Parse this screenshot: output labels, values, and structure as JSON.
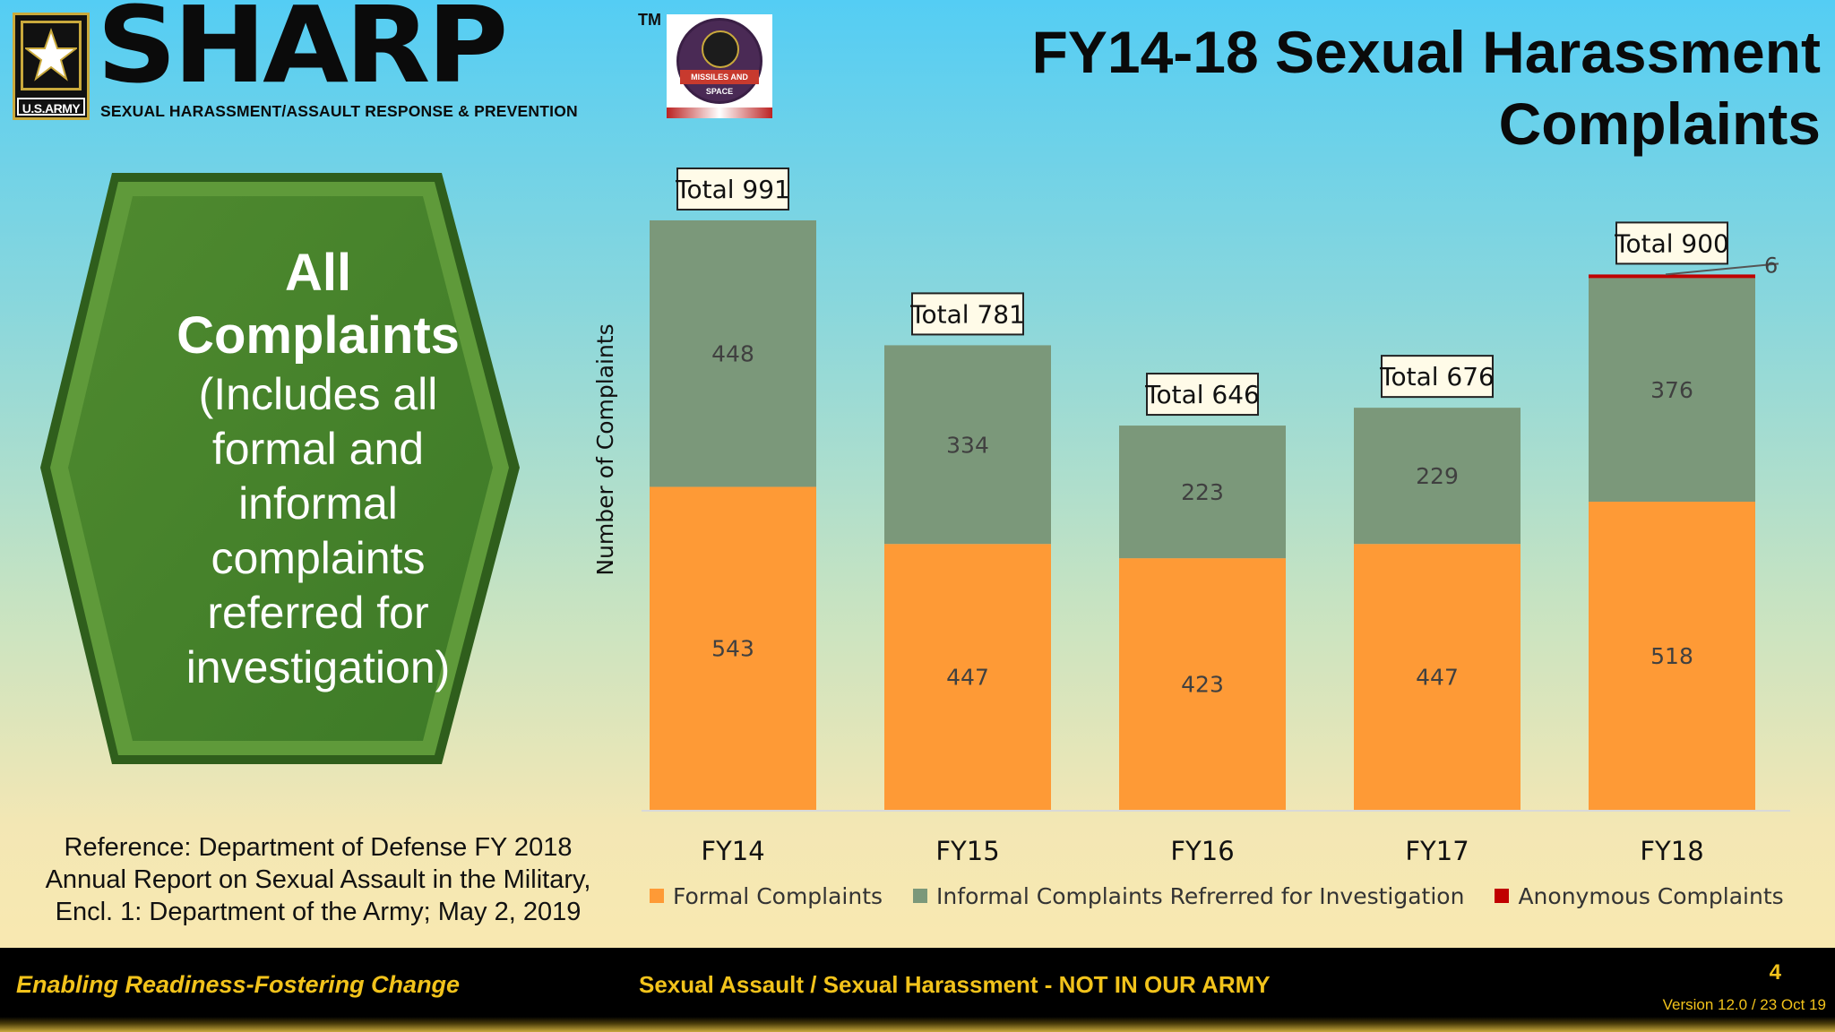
{
  "header": {
    "logo_text": "SHARP",
    "trademark": "TM",
    "tagline": "SEXUAL HARASSMENT/ASSAULT RESPONSE & PREVENTION",
    "army_badge": "U.S.ARMY",
    "command_patch_text": "MISSILES AND SPACE",
    "title_line1": "FY14-18 Sexual Harassment",
    "title_line2": "Complaints"
  },
  "callout": {
    "heading_line1": "All",
    "heading_line2": "Complaints",
    "lines": [
      "(Includes all",
      "formal and",
      "informal",
      "complaints",
      "referred for",
      "investigation)"
    ]
  },
  "reference": {
    "line1": "Reference: Department of Defense FY 2018",
    "line2": "Annual Report on Sexual Assault in the Military,",
    "line3": "Encl. 1: Department of the Army; May 2, 2019"
  },
  "chart_data": {
    "type": "bar",
    "stacked": true,
    "title": "",
    "xlabel": "",
    "ylabel": "Number of Complaints",
    "categories": [
      "FY14",
      "FY15",
      "FY16",
      "FY17",
      "FY18"
    ],
    "series": [
      {
        "name": "Formal Complaints",
        "values": [
          543,
          447,
          423,
          447,
          518
        ],
        "color": "#fe9a36"
      },
      {
        "name": "Informal Complaints Refrerred for Investigation",
        "values": [
          448,
          334,
          223,
          229,
          376
        ],
        "color": "#7b987a"
      },
      {
        "name": "Anonymous Complaints",
        "values": [
          0,
          0,
          0,
          0,
          6
        ],
        "color": "#c00000"
      }
    ],
    "totals": [
      "Total 991",
      "Total 781",
      "Total 646",
      "Total 676",
      "Total 900"
    ],
    "ylim": [
      0,
      1000
    ],
    "grid": false,
    "legend_position": "bottom"
  },
  "footer": {
    "slogan": "Enabling Readiness-Fostering Change",
    "center_text": "Sexual Assault / Sexual Harassment - NOT IN OUR ARMY",
    "page_number": "4",
    "version": "Version 12.0 / 23 Oct 19"
  }
}
